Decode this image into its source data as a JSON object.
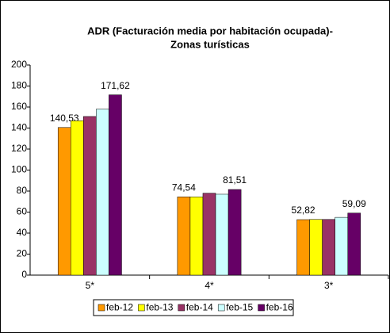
{
  "chart_data": {
    "type": "bar",
    "title": [
      "ADR (Facturación media por habitación ocupada)-",
      "Zonas turísticas"
    ],
    "categories": [
      "5*",
      "4*",
      "3*"
    ],
    "series": [
      {
        "name": "feb-12",
        "color": "#ff9900",
        "values": [
          140.53,
          74.54,
          52.82
        ],
        "value_labels": [
          "140,53",
          "74,54",
          "52,82"
        ]
      },
      {
        "name": "feb-13",
        "color": "#ffff00",
        "values": [
          147,
          74.5,
          53
        ]
      },
      {
        "name": "feb-14",
        "color": "#993366",
        "values": [
          151,
          78,
          53
        ]
      },
      {
        "name": "feb-15",
        "color": "#ccffff",
        "values": [
          158,
          77,
          55
        ]
      },
      {
        "name": "feb-16",
        "color": "#660066",
        "values": [
          171.62,
          81.51,
          59.09
        ],
        "value_labels": [
          "171,62",
          "81,51",
          "59,09"
        ]
      }
    ],
    "ylim": [
      0,
      200
    ],
    "yticks": [
      0,
      20,
      40,
      60,
      80,
      100,
      120,
      140,
      160,
      180,
      200
    ],
    "grid": false,
    "legend": "bottom"
  }
}
